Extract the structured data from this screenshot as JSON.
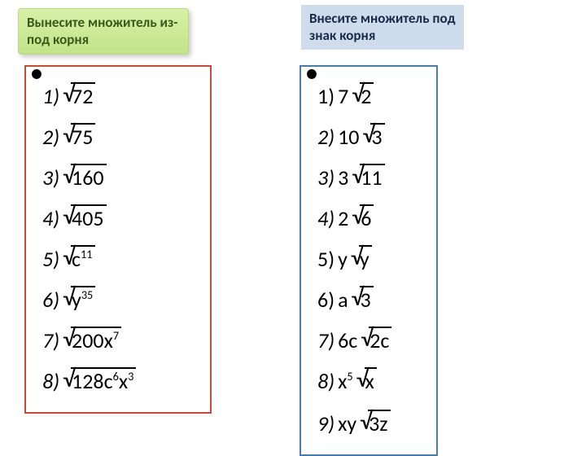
{
  "colors": {
    "background": "#ffffff",
    "header_left_bg_top": "#d8f0a8",
    "header_left_bg_bottom": "#c2e389",
    "header_left_text": "#3a5a1a",
    "header_left_border": "#b8d98a",
    "header_right_bg": "#cfdceb",
    "header_right_text": "#1a2a4a",
    "box_left_border": "#c44a3a",
    "box_right_border": "#4a7aaa",
    "text": "#000000"
  },
  "fontsize": {
    "header": 17,
    "problem": 26
  },
  "headers": {
    "left": "Вынесите множитель из-под корня",
    "right": "Внесите множитель под знак корня"
  },
  "left": {
    "items": [
      {
        "n": "1",
        "paren": ")",
        "coef": "",
        "radicand": "72",
        "italic": true
      },
      {
        "n": "2",
        "paren": ")",
        "coef": "",
        "radicand": "75",
        "italic": true
      },
      {
        "n": "3",
        "paren": ")",
        "coef": "",
        "radicand": "160",
        "italic": true
      },
      {
        "n": "4",
        "paren": ")",
        "coef": "",
        "radicand": "405",
        "italic": true
      },
      {
        "n": "5",
        "paren": ")",
        "coef": "",
        "radicand": "c^11",
        "italic": true
      },
      {
        "n": "6",
        "paren": ")",
        "coef": "",
        "radicand": "y^35",
        "italic": true
      },
      {
        "n": "7",
        "paren": ")",
        "coef": "",
        "radicand": "200x^7",
        "italic": true
      },
      {
        "n": "8",
        "paren": ")",
        "coef": "",
        "radicand": "128c^6x^3",
        "italic": true
      }
    ]
  },
  "right": {
    "items": [
      {
        "n": "1",
        "paren": ")",
        "coef": "7",
        "radicand": "2",
        "italic": false
      },
      {
        "n": "2",
        "paren": ")",
        "coef": "10",
        "radicand": "3",
        "italic": true
      },
      {
        "n": "3",
        "paren": ")",
        "coef": "3",
        "radicand": "11",
        "italic": true
      },
      {
        "n": "4",
        "paren": ")",
        "coef": "2",
        "radicand": "6",
        "italic": true
      },
      {
        "n": "5",
        "paren": ")",
        "coef": "y",
        "radicand": "y",
        "italic": false
      },
      {
        "n": "6",
        "paren": ")",
        "coef": "a",
        "radicand": "3",
        "italic": false
      },
      {
        "n": "7",
        "paren": ")",
        "coef": "6c",
        "radicand": "2c",
        "italic": true
      },
      {
        "n": "8",
        "paren": ")",
        "coef": "x^5",
        "radicand": "x",
        "italic": true
      },
      {
        "n": "9",
        "paren": ")",
        "coef": "xy",
        "radicand": "3z",
        "italic": true
      }
    ]
  }
}
